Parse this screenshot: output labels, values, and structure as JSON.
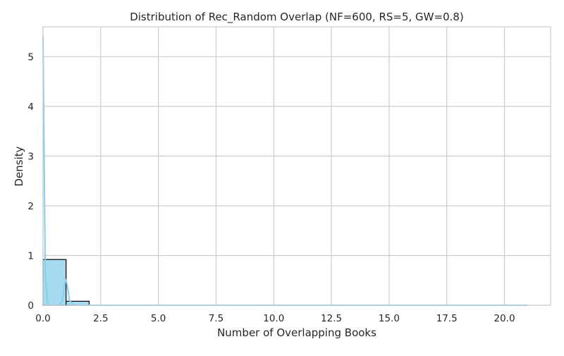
{
  "chart_data": {
    "type": "bar",
    "title": "Distribution of Rec_Random Overlap (NF=600, RS=5, GW=0.8)",
    "xlabel": "Number of Overlapping Books",
    "ylabel": "Density",
    "xlim": [
      0,
      22
    ],
    "ylim": [
      0,
      5.6
    ],
    "xticks": [
      0,
      2.5,
      5,
      7.5,
      10,
      12.5,
      15,
      17.5,
      20
    ],
    "xtick_labels": [
      "0.0",
      "2.5",
      "5.0",
      "7.5",
      "10.0",
      "12.5",
      "15.0",
      "17.5",
      "20.0"
    ],
    "yticks": [
      0,
      1,
      2,
      3,
      4,
      5
    ],
    "ytick_labels": [
      "0",
      "1",
      "2",
      "3",
      "4",
      "5"
    ],
    "grid": true,
    "bins": [
      {
        "x0": 0,
        "x1": 1,
        "value": 0.92
      },
      {
        "x0": 1,
        "x1": 2,
        "value": 0.08
      }
    ],
    "kde": {
      "x": [
        0,
        0.05,
        0.1,
        0.2,
        0.3,
        0.5,
        0.7,
        0.85,
        0.95,
        1.0,
        1.05,
        1.15,
        1.3,
        1.5,
        2.0,
        3.0,
        5.0,
        10.0,
        21.0
      ],
      "y": [
        5.4,
        3.0,
        0.6,
        0.02,
        0,
        0,
        0,
        0.1,
        0.45,
        0.5,
        0.4,
        0.1,
        0.01,
        0,
        0,
        0,
        0,
        0,
        0
      ]
    },
    "colors": {
      "bar_fill": "#87ceeb",
      "bar_edge": "#000000",
      "kde_line": "#87ceeb",
      "grid": "#cccccc"
    }
  }
}
